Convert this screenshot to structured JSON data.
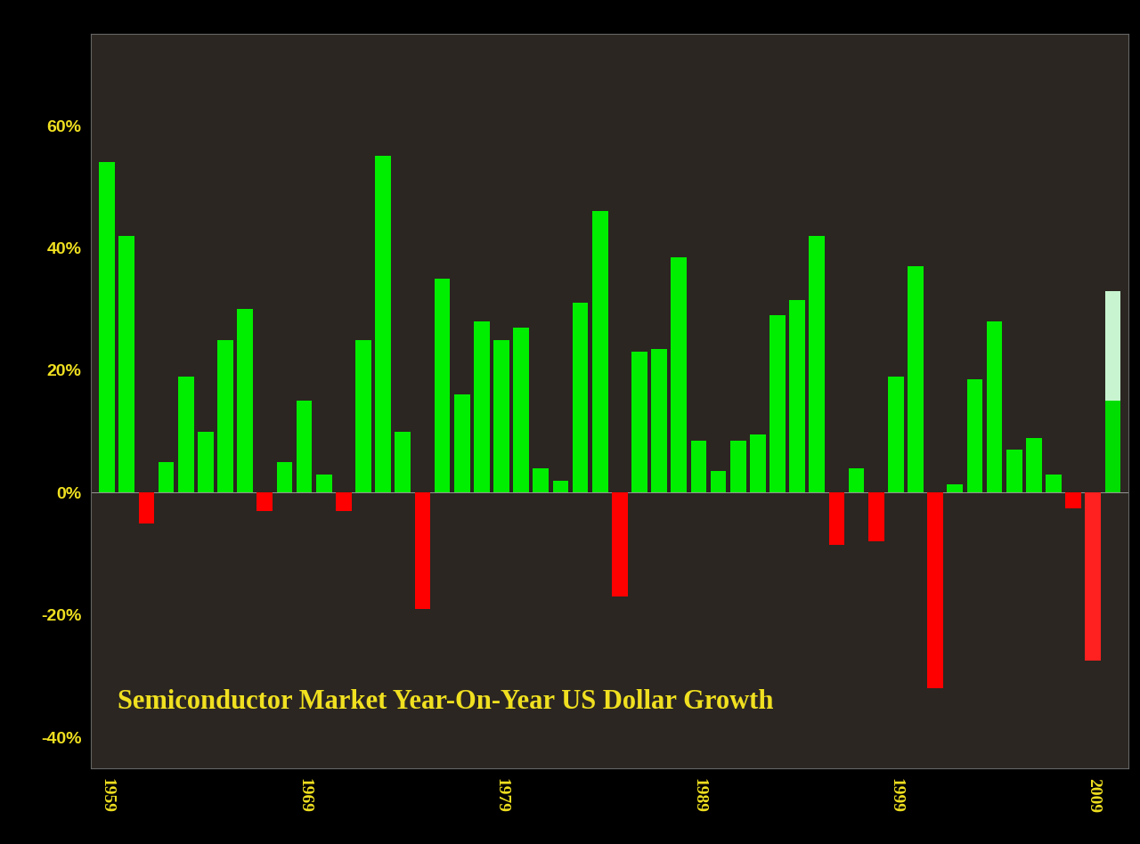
{
  "chart_data": {
    "type": "bar",
    "title": "Semiconductor Market Year-On-Year US Dollar Growth",
    "categories": [
      "1959",
      null,
      null,
      null,
      null,
      null,
      null,
      null,
      null,
      null,
      "1969",
      null,
      null,
      null,
      null,
      null,
      null,
      null,
      null,
      null,
      "1979",
      null,
      null,
      null,
      null,
      null,
      null,
      null,
      null,
      null,
      "1989",
      null,
      null,
      null,
      null,
      null,
      null,
      null,
      null,
      null,
      "1999",
      null,
      null,
      null,
      null,
      null,
      null,
      null,
      null,
      null,
      "2009",
      null
    ],
    "values": [
      54,
      42,
      -5,
      5,
      19,
      10,
      25,
      30,
      -3,
      5,
      15,
      3,
      -3,
      25,
      55,
      10,
      -19,
      35,
      16,
      28,
      25,
      27,
      4,
      2,
      31,
      46,
      -17,
      23,
      23.5,
      38.5,
      8.5,
      3.5,
      8.5,
      9.5,
      29,
      31.5,
      42,
      -8.5,
      4,
      -8,
      19,
      37,
      -32,
      1.3,
      18.5,
      28,
      7,
      9,
      3,
      -2.5,
      -27.5,
      15
    ],
    "range_high": [
      null,
      null,
      null,
      null,
      null,
      null,
      null,
      null,
      null,
      null,
      null,
      null,
      null,
      null,
      null,
      null,
      null,
      null,
      null,
      null,
      null,
      null,
      null,
      null,
      null,
      null,
      null,
      null,
      null,
      null,
      null,
      null,
      null,
      null,
      null,
      null,
      null,
      null,
      null,
      null,
      null,
      null,
      null,
      null,
      null,
      null,
      null,
      null,
      null,
      null,
      null,
      33
    ],
    "colors": [
      "#00ee00",
      "#00ee00",
      "#ff0000",
      "#00ee00",
      "#00ee00",
      "#00ee00",
      "#00ee00",
      "#00ee00",
      "#ff0000",
      "#00ee00",
      "#00ee00",
      "#00ee00",
      "#ff0000",
      "#00ee00",
      "#00ee00",
      "#00ee00",
      "#ff0000",
      "#00ee00",
      "#00ee00",
      "#00ee00",
      "#00ee00",
      "#00ee00",
      "#00ee00",
      "#00ee00",
      "#00ee00",
      "#00ee00",
      "#ff0000",
      "#00ee00",
      "#00ee00",
      "#00ee00",
      "#00ee00",
      "#00ee00",
      "#00ee00",
      "#00ee00",
      "#00ee00",
      "#00ee00",
      "#00ee00",
      "#ff0000",
      "#00ee00",
      "#ff0000",
      "#00ee00",
      "#00ee00",
      "#ff0000",
      "#00ee00",
      "#00ee00",
      "#00ee00",
      "#00ee00",
      "#00ee00",
      "#00ee00",
      "#ff0000",
      "#ff2020",
      "#00dd00"
    ],
    "ylim": [
      -45,
      75
    ],
    "yticks": [
      {
        "value": -40,
        "label": "-40%"
      },
      {
        "value": -20,
        "label": "-20%"
      },
      {
        "value": 0,
        "label": "0%"
      },
      {
        "value": 20,
        "label": "20%"
      },
      {
        "value": 40,
        "label": "40%"
      },
      {
        "value": 60,
        "label": "60%"
      }
    ],
    "grid": false
  }
}
